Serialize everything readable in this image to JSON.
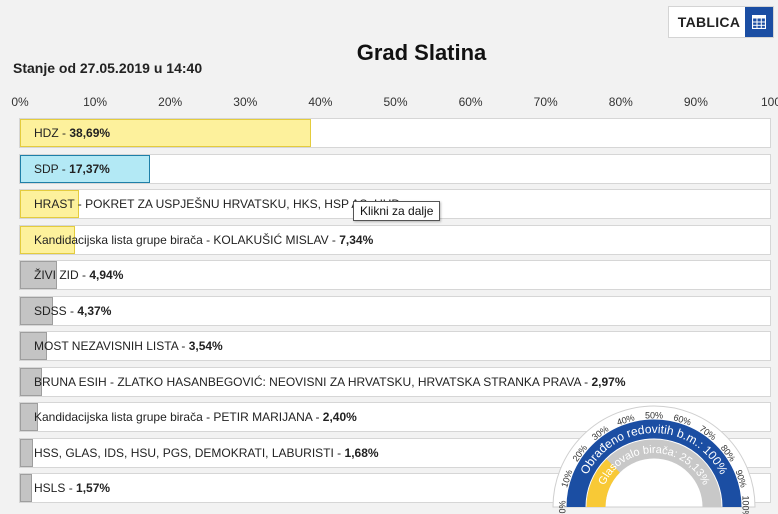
{
  "header": {
    "tablica_label": "TABLICA",
    "title": "Grad Slatina",
    "stanje": "Stanje od 27.05.2019 u 14:40"
  },
  "tooltip": "Klikni za dalje",
  "colors": {
    "yellow": "#fdf19c",
    "yellow_border": "#e4cc3d",
    "cyan": "#b3e9f5",
    "cyan_border": "#1e7fa8",
    "gray": "#c4c4c4",
    "gray_border": "#9e9e9e",
    "gauge_blue": "#1b4ea3",
    "gauge_yellow": "#f8c936"
  },
  "chart_data": {
    "type": "bar",
    "orientation": "horizontal",
    "xlim": [
      0,
      100
    ],
    "x_ticks": [
      "0%",
      "10%",
      "20%",
      "30%",
      "40%",
      "50%",
      "60%",
      "70%",
      "80%",
      "90%",
      "100"
    ],
    "bars": [
      {
        "label": "HDZ",
        "value": 38.69,
        "value_label": "38,69%",
        "color": "yellow"
      },
      {
        "label": "SDP",
        "value": 17.37,
        "value_label": "17,37%",
        "color": "cyan"
      },
      {
        "label": "HRAST - POKRET ZA USPJEŠNU HRVATSKU, HKS, HSP AS, UHD",
        "value": 7.8,
        "value_label": "",
        "color": "yellow"
      },
      {
        "label": "Kandidacijska lista grupe birača - KOLAKUŠIĆ MISLAV",
        "value": 7.34,
        "value_label": "7,34%",
        "color": "yellow"
      },
      {
        "label": "ŽIVI ZID",
        "value": 4.94,
        "value_label": "4,94%",
        "color": "gray"
      },
      {
        "label": "SDSS",
        "value": 4.37,
        "value_label": "4,37%",
        "color": "gray"
      },
      {
        "label": "MOST NEZAVISNIH LISTA",
        "value": 3.54,
        "value_label": "3,54%",
        "color": "gray"
      },
      {
        "label": "BRUNA ESIH - ZLATKO HASANBEGOVIĆ: NEOVISNI ZA HRVATSKU, HRVATSKA STRANKA PRAVA",
        "value": 2.97,
        "value_label": "2,97%",
        "color": "gray"
      },
      {
        "label": "Kandidacijska lista grupe birača - PETIR MARIJANA",
        "value": 2.4,
        "value_label": "2,40%",
        "color": "gray"
      },
      {
        "label": "HSS, GLAS, IDS, HSU, PGS, DEMOKRATI, LABURISTI",
        "value": 1.68,
        "value_label": "1,68%",
        "color": "gray"
      },
      {
        "label": "HSLS",
        "value": 1.57,
        "value_label": "1,57%",
        "color": "gray"
      }
    ]
  },
  "gauge": {
    "ticks": [
      "0%",
      "10%",
      "20%",
      "30%",
      "40%",
      "50%",
      "60%",
      "70%",
      "80%",
      "90%",
      "100%"
    ],
    "processed_label": "Obrađeno redovitih b.m.: 100%",
    "processed_value": 100,
    "turnout_label": "Glasovalo birača: 25,13%",
    "turnout_value": 25.13
  }
}
